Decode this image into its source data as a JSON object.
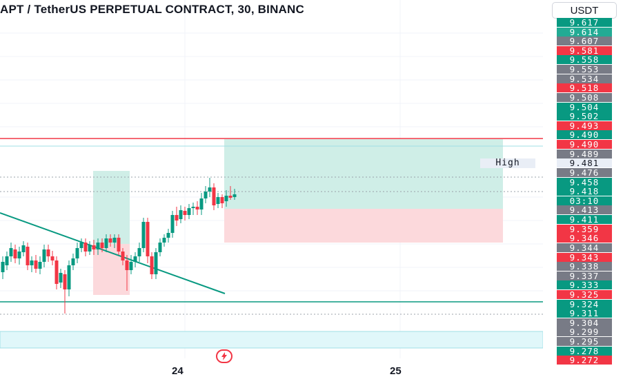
{
  "header": {
    "title": "APT / TetherUS PERPETUAL CONTRACT, 30, BINANC",
    "currency_button": "USDT"
  },
  "colors": {
    "up": "#089981",
    "down": "#f23645",
    "grey": "#787b86",
    "long_zone": "#cfeee7",
    "short_zone": "#fcd9dc"
  },
  "price_axis": {
    "labels": [
      {
        "text": "9.617",
        "style": "green"
      },
      {
        "text": "9.614",
        "style": "cyan"
      },
      {
        "text": "9.607",
        "style": "grey"
      },
      {
        "text": "9.581",
        "style": "red"
      },
      {
        "text": "9.558",
        "style": "green"
      },
      {
        "text": "9.553",
        "style": "grey"
      },
      {
        "text": "9.534",
        "style": "grey"
      },
      {
        "text": "9.518",
        "style": "red"
      },
      {
        "text": "9.508",
        "style": "grey"
      },
      {
        "text": "9.504",
        "style": "green"
      },
      {
        "text": "9.502",
        "style": "green"
      },
      {
        "text": "9.493",
        "style": "red"
      },
      {
        "text": "9.490",
        "style": "green"
      },
      {
        "text": "9.490",
        "style": "red"
      },
      {
        "text": "9.489",
        "style": "grey"
      },
      {
        "text": "9.481",
        "style": "high"
      },
      {
        "text": "9.476",
        "style": "grey"
      },
      {
        "text": "9.458",
        "style": "green"
      },
      {
        "text": "9.418",
        "style": "green"
      },
      {
        "text": "03:10",
        "style": "green"
      },
      {
        "text": "9.413",
        "style": "grey"
      },
      {
        "text": "9.411",
        "style": "green"
      },
      {
        "text": "9.359",
        "style": "red"
      },
      {
        "text": "9.346",
        "style": "red"
      },
      {
        "text": "9.344",
        "style": "grey"
      },
      {
        "text": "9.343",
        "style": "red"
      },
      {
        "text": "9.338",
        "style": "grey"
      },
      {
        "text": "9.337",
        "style": "grey"
      },
      {
        "text": "9.333",
        "style": "green"
      },
      {
        "text": "9.325",
        "style": "red"
      },
      {
        "text": "9.324",
        "style": "green"
      },
      {
        "text": "9.311",
        "style": "green"
      },
      {
        "text": "9.304",
        "style": "grey"
      },
      {
        "text": "9.299",
        "style": "grey"
      },
      {
        "text": "9.295",
        "style": "grey"
      },
      {
        "text": "9.278",
        "style": "green"
      },
      {
        "text": "9.272",
        "style": "red"
      }
    ],
    "high_tag": "High"
  },
  "time_axis": {
    "labels": [
      "24",
      "25"
    ]
  },
  "alert_icon": "lightning-icon"
}
